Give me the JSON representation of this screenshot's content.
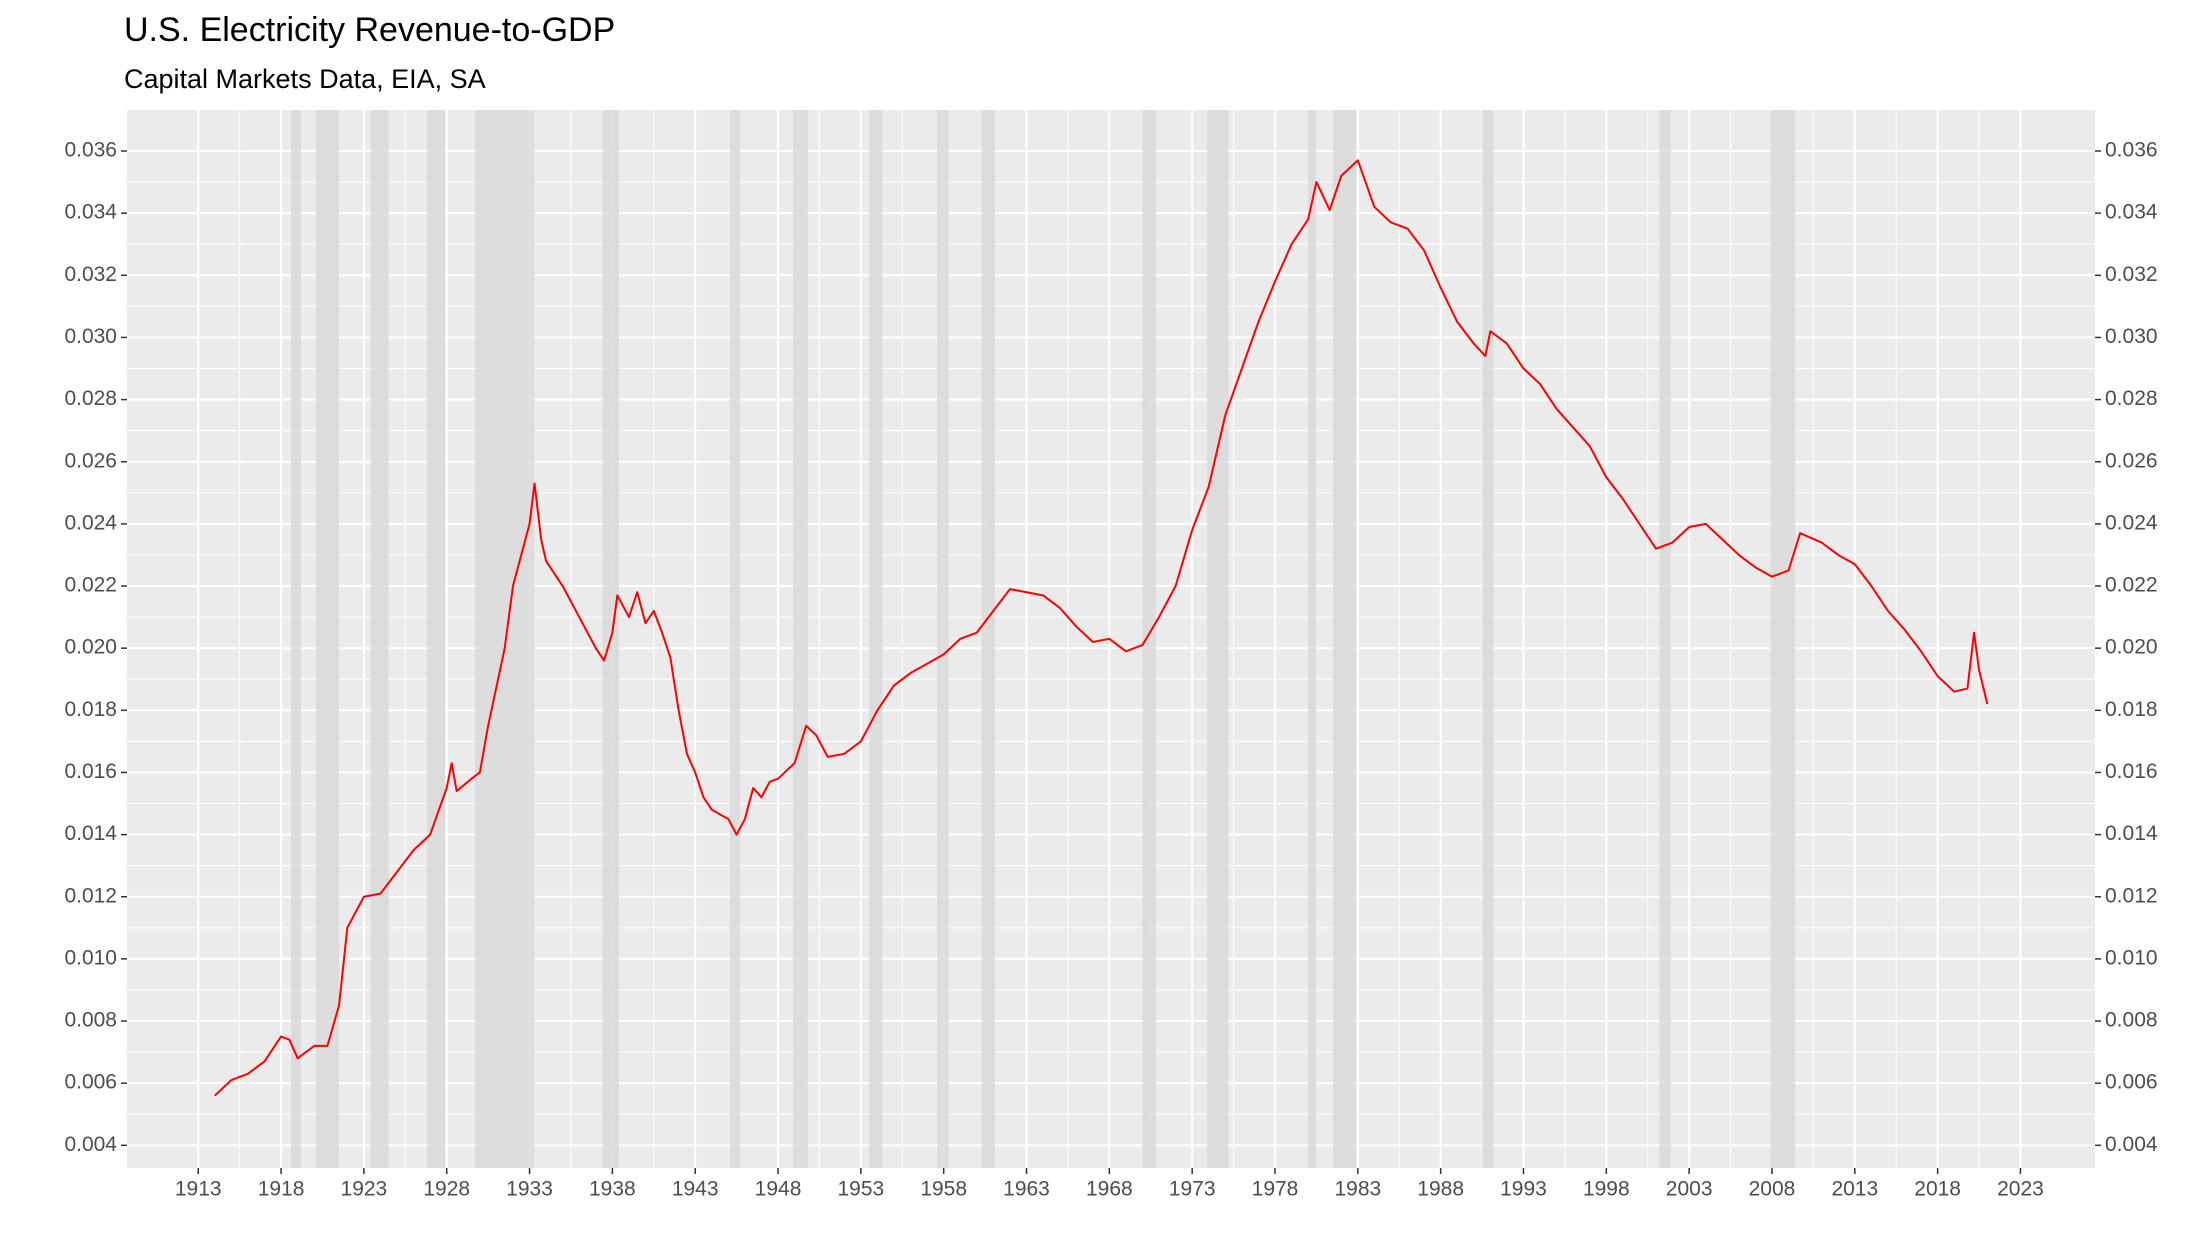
{
  "chart_data": {
    "type": "line",
    "title": "U.S. Electricity Revenue-to-GDP",
    "subtitle": "Capital Markets Data, EIA, SA",
    "xlim": [
      1908.7,
      2027.5
    ],
    "xticks": [
      1913,
      1918,
      1923,
      1928,
      1933,
      1938,
      1943,
      1948,
      1953,
      1958,
      1963,
      1968,
      1973,
      1978,
      1983,
      1988,
      1993,
      1998,
      2003,
      2008,
      2013,
      2018,
      2023
    ],
    "ylim": [
      0.00327,
      0.03732
    ],
    "yticks": [
      0.004,
      0.006,
      0.008,
      {
        "value": 0.01,
        "label": "0.010"
      },
      0.012,
      0.014,
      0.016,
      0.018,
      {
        "value": 0.02,
        "label": "0.020"
      },
      0.022,
      0.024,
      0.026,
      0.028,
      {
        "value": 0.03,
        "label": "0.030"
      },
      0.032,
      0.034,
      0.036
    ],
    "y2lim": [
      0.00327,
      0.03732
    ],
    "y2ticks": [
      0.004,
      0.006,
      0.008,
      {
        "value": 0.01,
        "label": "0.010"
      },
      0.012,
      0.014,
      0.016,
      0.018,
      {
        "value": 0.02,
        "label": "0.020"
      },
      0.022,
      0.024,
      0.026,
      0.028,
      {
        "value": 0.03,
        "label": "0.030"
      },
      0.032,
      0.034,
      0.036
    ],
    "grid": true,
    "recession_color": "#d9d9d9",
    "recessions": [
      [
        1918.6,
        1919.2
      ],
      [
        1920.1,
        1921.5
      ],
      [
        1923.4,
        1924.5
      ],
      [
        1926.8,
        1927.9
      ],
      [
        1929.7,
        1933.3
      ],
      [
        1937.4,
        1938.4
      ],
      [
        1945.1,
        1945.7
      ],
      [
        1948.9,
        1949.8
      ],
      [
        1953.5,
        1954.3
      ],
      [
        1957.6,
        1958.3
      ],
      [
        1960.3,
        1961.1
      ],
      [
        1970.0,
        1970.8
      ],
      [
        1973.9,
        1975.2
      ],
      [
        1980.0,
        1980.5
      ],
      [
        1981.5,
        1982.9
      ],
      [
        1990.5,
        1991.2
      ],
      [
        2001.2,
        2001.9
      ],
      [
        2007.9,
        2009.4
      ]
    ],
    "series": [
      {
        "color": "#ff0000",
        "x": [
          1914.0,
          1915,
          1916,
          1917,
          1918,
          1918.5,
          1919,
          1920,
          1920.8,
          1921.5,
          1922,
          1923,
          1924,
          1925,
          1926,
          1927,
          1928,
          1928.3,
          1928.6,
          1929.5,
          1930,
          1930.5,
          1931.5,
          1932,
          1933,
          1933.3,
          1933.7,
          1934,
          1935,
          1936,
          1937,
          1937.5,
          1938,
          1938.3,
          1939,
          1939.5,
          1940,
          1940.5,
          1941,
          1941.5,
          1942,
          1942.5,
          1943,
          1943.5,
          1944,
          1945,
          1945.5,
          1946,
          1946.5,
          1947,
          1947.5,
          1948,
          1949,
          1949.7,
          1950.3,
          1951,
          1952,
          1953,
          1954,
          1955,
          1956,
          1957,
          1958,
          1959,
          1960,
          1961,
          1962,
          1963,
          1964,
          1965,
          1966,
          1967,
          1968,
          1969,
          1970,
          1971,
          1972,
          1973,
          1974,
          1975,
          1976,
          1977,
          1978,
          1979,
          1980,
          1980.5,
          1981.3,
          1982,
          1983,
          1984,
          1985,
          1986,
          1987,
          1988,
          1989,
          1990,
          1990.7,
          1991,
          1992,
          1993,
          1994,
          1995,
          1996,
          1997,
          1998,
          1999,
          2000,
          2001,
          2002,
          2003,
          2004,
          2005,
          2006,
          2007,
          2008,
          2009,
          2009.7,
          2011,
          2012,
          2013,
          2014,
          2015,
          2016,
          2017,
          2018,
          2019,
          2019.8,
          2020.2,
          2020.5,
          2021
        ],
        "values": [
          0.0056,
          0.0061,
          0.0063,
          0.0067,
          0.0075,
          0.0074,
          0.0068,
          0.0072,
          0.0072,
          0.0085,
          0.011,
          0.012,
          0.0121,
          0.0128,
          0.0135,
          0.014,
          0.0155,
          0.0163,
          0.0154,
          0.0158,
          0.016,
          0.0175,
          0.02,
          0.022,
          0.024,
          0.0253,
          0.0235,
          0.0228,
          0.022,
          0.021,
          0.02,
          0.0196,
          0.0205,
          0.0217,
          0.021,
          0.0218,
          0.0208,
          0.0212,
          0.0205,
          0.0197,
          0.018,
          0.0166,
          0.016,
          0.0152,
          0.0148,
          0.0145,
          0.014,
          0.0145,
          0.0155,
          0.0152,
          0.0157,
          0.0158,
          0.0163,
          0.0175,
          0.0172,
          0.0165,
          0.0166,
          0.017,
          0.018,
          0.0188,
          0.0192,
          0.0195,
          0.0198,
          0.0203,
          0.0205,
          0.0212,
          0.0219,
          0.0218,
          0.0217,
          0.0213,
          0.0207,
          0.0202,
          0.0203,
          0.0199,
          0.0201,
          0.021,
          0.022,
          0.0238,
          0.0252,
          0.0275,
          0.029,
          0.0305,
          0.0318,
          0.033,
          0.0338,
          0.035,
          0.0341,
          0.0352,
          0.0357,
          0.0342,
          0.0337,
          0.0335,
          0.0328,
          0.0316,
          0.0305,
          0.0298,
          0.0294,
          0.0302,
          0.0298,
          0.029,
          0.0285,
          0.0277,
          0.0271,
          0.0265,
          0.0255,
          0.0248,
          0.024,
          0.0232,
          0.0234,
          0.0239,
          0.024,
          0.0235,
          0.023,
          0.0226,
          0.0223,
          0.0225,
          0.0237,
          0.0234,
          0.023,
          0.0227,
          0.022,
          0.0212,
          0.0206,
          0.0199,
          0.0191,
          0.0186,
          0.0187,
          0.0205,
          0.0193,
          0.0182
        ]
      }
    ]
  }
}
